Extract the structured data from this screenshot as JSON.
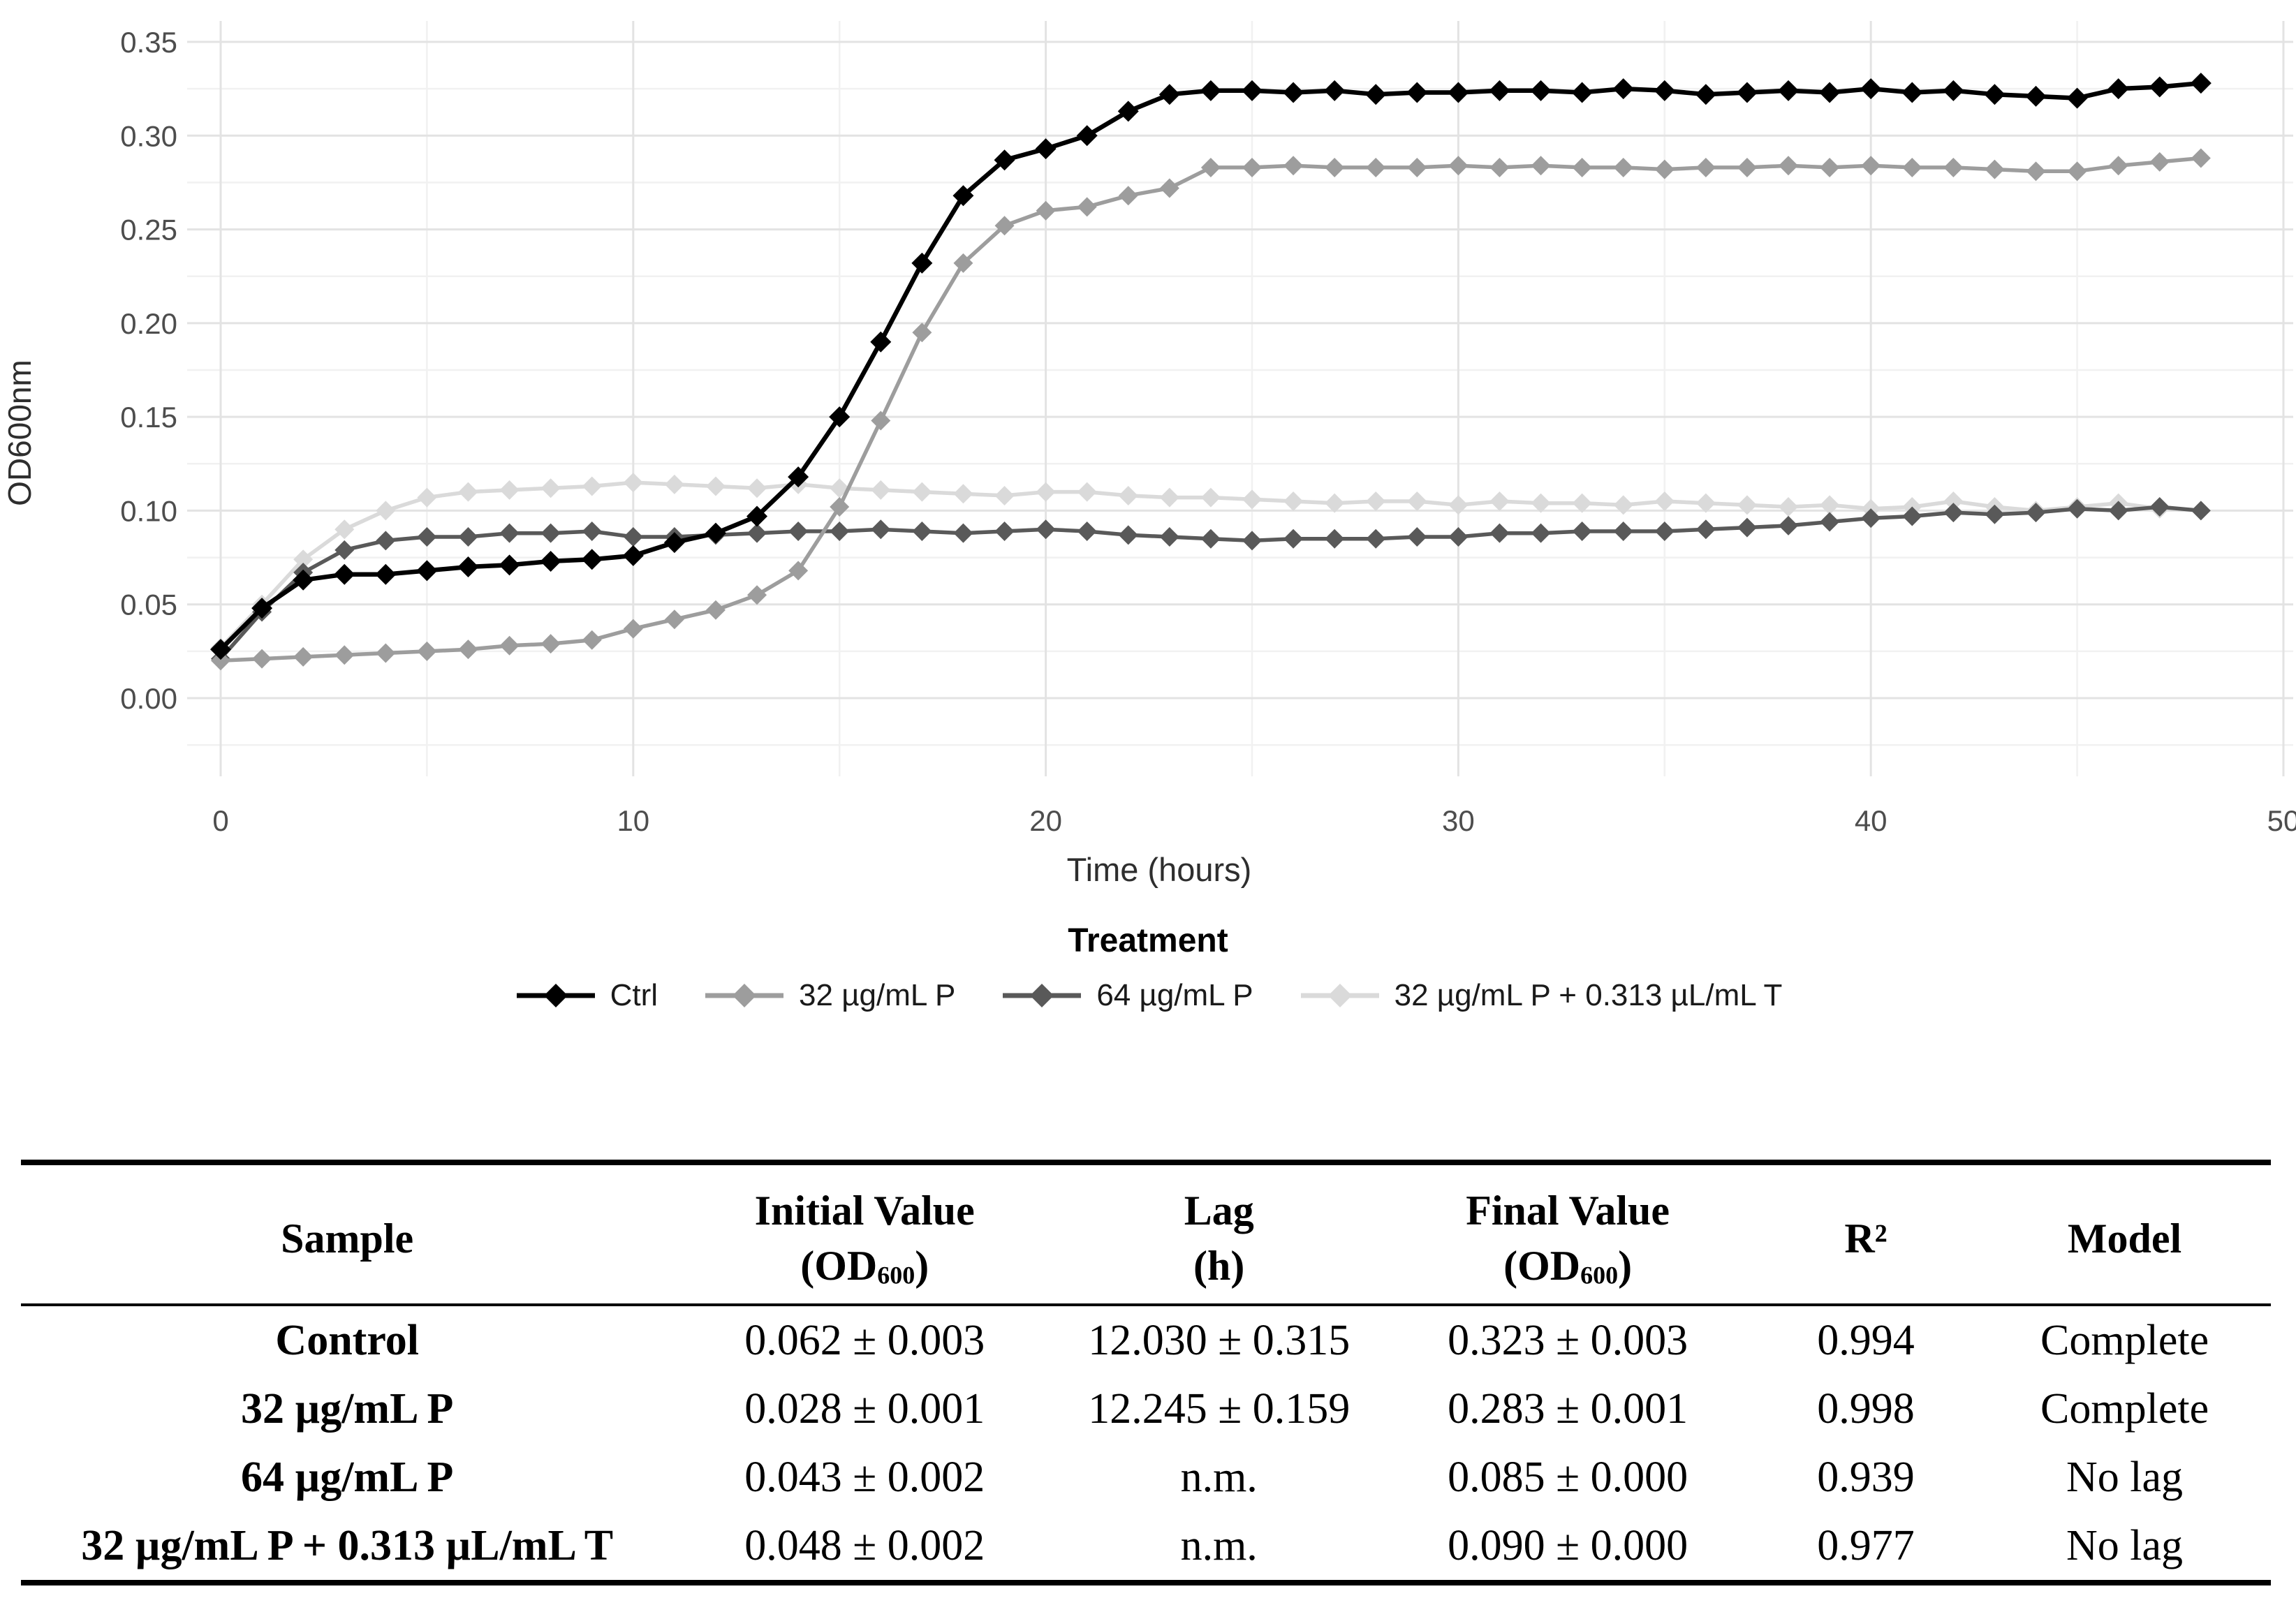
{
  "chart_data": {
    "type": "line",
    "title": "",
    "xlabel": "Time (hours)",
    "ylabel": "OD600nm",
    "xlim": [
      0,
      50
    ],
    "ylim": [
      0,
      0.35
    ],
    "x_ticks": [
      "0",
      "10",
      "20",
      "30",
      "40",
      "50"
    ],
    "y_ticks": [
      "0.00",
      "0.05",
      "0.10",
      "0.15",
      "0.20",
      "0.25",
      "0.30",
      "0.35"
    ],
    "grid": "major and minor gridlines on, light gray, white background",
    "legend_title": "Treatment",
    "legend_position": "bottom",
    "x": [
      0,
      1,
      2,
      3,
      4,
      5,
      6,
      7,
      8,
      9,
      10,
      11,
      12,
      13,
      14,
      15,
      16,
      17,
      18,
      19,
      20,
      21,
      22,
      23,
      24,
      25,
      26,
      27,
      28,
      29,
      30,
      31,
      32,
      33,
      34,
      35,
      36,
      37,
      38,
      39,
      40,
      41,
      42,
      43,
      44,
      45,
      46,
      47,
      48
    ],
    "series": [
      {
        "name": "Ctrl",
        "color": "#000000",
        "values": [
          0.026,
          0.048,
          0.063,
          0.066,
          0.066,
          0.068,
          0.07,
          0.071,
          0.073,
          0.074,
          0.076,
          0.083,
          0.088,
          0.097,
          0.118,
          0.15,
          0.19,
          0.232,
          0.268,
          0.287,
          0.293,
          0.3,
          0.313,
          0.322,
          0.324,
          0.324,
          0.323,
          0.324,
          0.322,
          0.323,
          0.323,
          0.324,
          0.324,
          0.323,
          0.325,
          0.324,
          0.322,
          0.323,
          0.324,
          0.323,
          0.325,
          0.323,
          0.324,
          0.322,
          0.321,
          0.32,
          0.325,
          0.326,
          0.328
        ]
      },
      {
        "name": "32 µg/mL P",
        "color": "#9d9d9d",
        "values": [
          0.02,
          0.021,
          0.022,
          0.023,
          0.024,
          0.025,
          0.026,
          0.028,
          0.029,
          0.031,
          0.037,
          0.042,
          0.047,
          0.055,
          0.068,
          0.102,
          0.148,
          0.195,
          0.232,
          0.252,
          0.26,
          0.262,
          0.268,
          0.272,
          0.283,
          0.283,
          0.284,
          0.283,
          0.283,
          0.283,
          0.284,
          0.283,
          0.284,
          0.283,
          0.283,
          0.282,
          0.283,
          0.283,
          0.284,
          0.283,
          0.284,
          0.283,
          0.283,
          0.282,
          0.281,
          0.281,
          0.284,
          0.286,
          0.288
        ]
      },
      {
        "name": "64 µg/mL P",
        "color": "#595959",
        "values": [
          0.021,
          0.046,
          0.067,
          0.079,
          0.084,
          0.086,
          0.086,
          0.088,
          0.088,
          0.089,
          0.086,
          0.086,
          0.087,
          0.088,
          0.089,
          0.089,
          0.09,
          0.089,
          0.088,
          0.089,
          0.09,
          0.089,
          0.087,
          0.086,
          0.085,
          0.084,
          0.085,
          0.085,
          0.085,
          0.086,
          0.086,
          0.088,
          0.088,
          0.089,
          0.089,
          0.089,
          0.09,
          0.091,
          0.092,
          0.094,
          0.096,
          0.097,
          0.099,
          0.098,
          0.099,
          0.101,
          0.1,
          0.102,
          0.1
        ]
      },
      {
        "name": "32 µg/mL P + 0.313 µL/mL T",
        "color": "#dadada",
        "values": [
          0.027,
          0.05,
          0.074,
          0.09,
          0.1,
          0.107,
          0.11,
          0.111,
          0.112,
          0.113,
          0.115,
          0.114,
          0.113,
          0.112,
          0.114,
          0.112,
          0.111,
          0.11,
          0.109,
          0.108,
          0.11,
          0.11,
          0.108,
          0.107,
          0.107,
          0.106,
          0.105,
          0.104,
          0.105,
          0.105,
          0.103,
          0.105,
          0.104,
          0.104,
          0.103,
          0.105,
          0.104,
          0.103,
          0.102,
          0.103,
          0.101,
          0.102,
          0.105,
          0.102,
          0.1,
          0.102,
          0.104,
          0.101,
          0.1
        ]
      }
    ]
  },
  "table": {
    "columns": [
      {
        "line1": "Sample",
        "line2_pre": "",
        "line2_sub": "",
        "line2_post": ""
      },
      {
        "line1": "Initial Value",
        "line2_pre": "(OD",
        "line2_sub": "600",
        "line2_post": ")"
      },
      {
        "line1": "Lag",
        "line2_pre": "(h)",
        "line2_sub": "",
        "line2_post": ""
      },
      {
        "line1": "Final Value",
        "line2_pre": "(OD",
        "line2_sub": "600",
        "line2_post": ")"
      },
      {
        "line1": "R²",
        "line2_pre": "",
        "line2_sub": "",
        "line2_post": ""
      },
      {
        "line1": "Model",
        "line2_pre": "",
        "line2_sub": "",
        "line2_post": ""
      }
    ],
    "rows": [
      {
        "sample": "Control",
        "initial": "0.062 ± 0.003",
        "lag": "12.030 ± 0.315",
        "final": "0.323 ± 0.003",
        "r2": "0.994",
        "model": "Complete"
      },
      {
        "sample": "32 µg/mL P",
        "initial": "0.028 ± 0.001",
        "lag": "12.245 ± 0.159",
        "final": "0.283 ± 0.001",
        "r2": "0.998",
        "model": "Complete"
      },
      {
        "sample": "64 µg/mL P",
        "initial": "0.043 ± 0.002",
        "lag": "n.m.",
        "final": "0.085 ± 0.000",
        "r2": "0.939",
        "model": "No lag"
      },
      {
        "sample": "32 µg/mL P + 0.313 µL/mL T",
        "initial": "0.048 ± 0.002",
        "lag": "n.m.",
        "final": "0.090 ± 0.000",
        "r2": "0.977",
        "model": "No lag"
      }
    ]
  },
  "colors": {
    "axis_tick_label": "#4d4d4d",
    "axis_title": "#2e2e2e",
    "grid_major": "#e3e3e3",
    "grid_minor": "#f1f1f1"
  }
}
